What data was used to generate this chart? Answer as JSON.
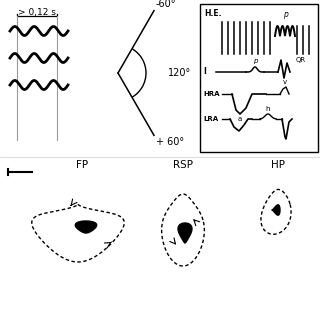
{
  "white": "#ffffff",
  "black": "#000000",
  "gray": "#999999",
  "light_gray": "#cccccc",
  "top_label": "> 0,12 s",
  "angle_neg60": "-60°",
  "angle_120": "120°",
  "angle_pos60": "+ 60°",
  "bottom_labels": [
    "FP",
    "RSP",
    "HP"
  ],
  "box_he": "H.E.",
  "box_i": "I",
  "box_hra": "HRA",
  "box_lra": "LRA",
  "label_p1": "p",
  "label_p2": "p",
  "label_QR": "QR",
  "label_a": "a",
  "label_v": "v",
  "label_h": "h"
}
